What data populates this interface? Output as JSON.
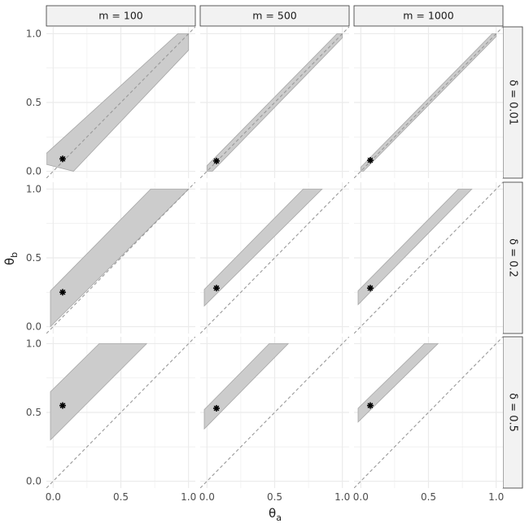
{
  "chart_data": {
    "type": "area",
    "facet_layout": "grid",
    "col_strip_labels": [
      "m = 100",
      "m = 500",
      "m = 1000"
    ],
    "row_strip_labels": [
      "δ = 0.01",
      "δ = 0.2",
      "δ = 0.5"
    ],
    "x_axis_label": "θa",
    "y_axis_label": "θb",
    "xlim": [
      0,
      1
    ],
    "ylim": [
      0,
      1
    ],
    "x_ticks": [
      0.0,
      0.5,
      1.0
    ],
    "y_ticks": [
      0.0,
      0.5,
      1.0
    ],
    "x_tick_labels": [
      "0.0",
      "0.5",
      "1.0"
    ],
    "y_tick_labels": [
      "0.0",
      "0.5",
      "1.0"
    ],
    "grid": true,
    "reference_line": "y = x (dashed)",
    "band_color": "#cccccc",
    "band_edge_color": "#a6a6a6",
    "point_color": "#000000",
    "reference_line_color": "#999999",
    "grid_color": "#ebebeb",
    "strip_fill": "#f2f2f2",
    "panels": [
      {
        "row": 0,
        "col": 0,
        "band_polygon": [
          [
            -0.05,
            0.05
          ],
          [
            -0.05,
            0.13
          ],
          [
            0.92,
            1.0
          ],
          [
            1.0,
            1.0
          ],
          [
            1.0,
            0.88
          ],
          [
            0.15,
            0.0
          ]
        ],
        "point": [
          0.07,
          0.09
        ]
      },
      {
        "row": 0,
        "col": 1,
        "band_polygon": [
          [
            0.0,
            0.0
          ],
          [
            0.0,
            0.04
          ],
          [
            0.96,
            1.0
          ],
          [
            1.0,
            1.0
          ],
          [
            1.0,
            0.97
          ],
          [
            0.04,
            0.0
          ]
        ],
        "point": [
          0.07,
          0.075
        ]
      },
      {
        "row": 0,
        "col": 2,
        "band_polygon": [
          [
            0.0,
            0.0
          ],
          [
            0.0,
            0.03
          ],
          [
            0.97,
            1.0
          ],
          [
            1.0,
            1.0
          ],
          [
            1.0,
            0.98
          ],
          [
            0.02,
            0.0
          ]
        ],
        "point": [
          0.07,
          0.08
        ]
      },
      {
        "row": 1,
        "col": 0,
        "band_polygon": [
          [
            -0.02,
            0.0
          ],
          [
            -0.02,
            0.26
          ],
          [
            0.72,
            1.0
          ],
          [
            1.0,
            1.0
          ]
        ],
        "point": [
          0.07,
          0.25
        ]
      },
      {
        "row": 1,
        "col": 1,
        "band_polygon": [
          [
            -0.02,
            0.15
          ],
          [
            -0.02,
            0.27
          ],
          [
            0.71,
            1.0
          ],
          [
            0.85,
            1.0
          ]
        ],
        "point": [
          0.07,
          0.28
        ]
      },
      {
        "row": 1,
        "col": 2,
        "band_polygon": [
          [
            -0.02,
            0.16
          ],
          [
            -0.02,
            0.26
          ],
          [
            0.72,
            1.0
          ],
          [
            0.82,
            1.0
          ]
        ],
        "point": [
          0.07,
          0.28
        ]
      },
      {
        "row": 2,
        "col": 0,
        "band_polygon": [
          [
            -0.02,
            0.3
          ],
          [
            -0.02,
            0.65
          ],
          [
            0.34,
            1.0
          ],
          [
            0.69,
            1.0
          ]
        ],
        "point": [
          0.07,
          0.55
        ]
      },
      {
        "row": 2,
        "col": 1,
        "band_polygon": [
          [
            -0.02,
            0.38
          ],
          [
            -0.02,
            0.52
          ],
          [
            0.46,
            1.0
          ],
          [
            0.6,
            1.0
          ]
        ],
        "point": [
          0.07,
          0.53
        ]
      },
      {
        "row": 2,
        "col": 2,
        "band_polygon": [
          [
            -0.02,
            0.43
          ],
          [
            -0.02,
            0.53
          ],
          [
            0.47,
            1.0
          ],
          [
            0.57,
            1.0
          ]
        ],
        "point": [
          0.07,
          0.55
        ]
      }
    ]
  }
}
